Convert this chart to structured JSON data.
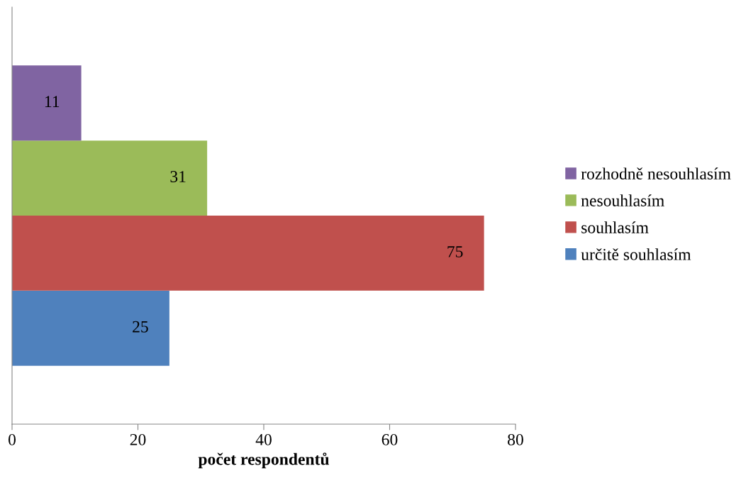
{
  "chart_data": {
    "type": "bar",
    "orientation": "horizontal",
    "categories": [
      null
    ],
    "series": [
      {
        "name": "určitě souhlasím",
        "color": "#4f81bd",
        "values": [
          25
        ]
      },
      {
        "name": "souhlasím",
        "color": "#c0504d",
        "values": [
          75
        ]
      },
      {
        "name": "nesouhlasím",
        "color": "#9bbb59",
        "values": [
          31
        ]
      },
      {
        "name": "rozhodně nesouhlasím",
        "color": "#8064a2",
        "values": [
          11
        ]
      }
    ],
    "xlabel": "počet respondentů",
    "xlim": [
      0,
      80
    ],
    "xticks": [
      0,
      20,
      40,
      60,
      80
    ],
    "data_labels": true,
    "legend": "right",
    "grid": false
  }
}
